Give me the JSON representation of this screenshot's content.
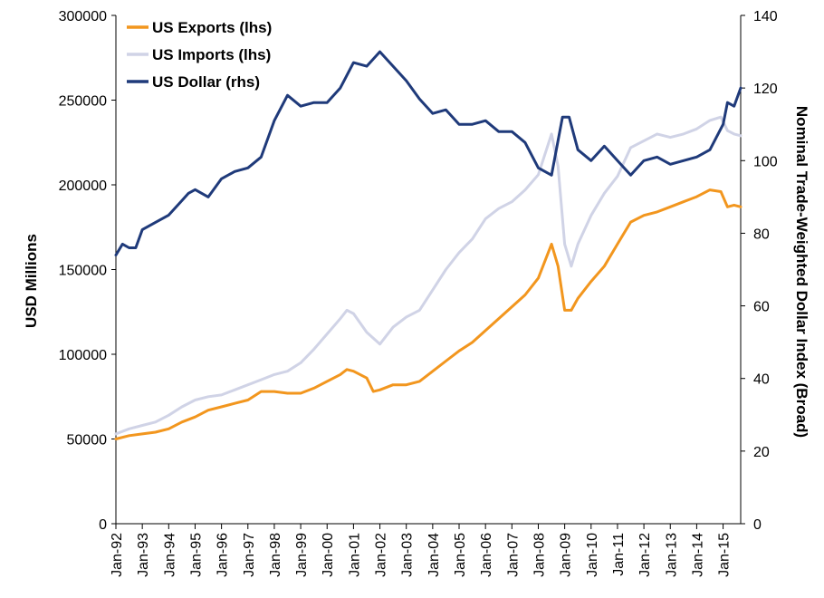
{
  "chart_data": {
    "type": "line",
    "title": "",
    "ylabel_left": "USD Millions",
    "ylabel_right": "Nominal Trade-Weighted Dollar Index (Broad)",
    "ylim_left": [
      0,
      300000
    ],
    "ylim_right": [
      0,
      140
    ],
    "yticks_left": [
      "0",
      "50000",
      "100000",
      "150000",
      "200000",
      "250000",
      "300000"
    ],
    "yticks_right": [
      "0",
      "20",
      "40",
      "60",
      "80",
      "100",
      "120",
      "140"
    ],
    "x_start": "Jan-92",
    "x_end": "Sep-15",
    "x_ticks": [
      "Jan-92",
      "Jan-93",
      "Jan-94",
      "Jan-95",
      "Jan-96",
      "Jan-97",
      "Jan-98",
      "Jan-99",
      "Jan-00",
      "Jan-01",
      "Jan-02",
      "Jan-03",
      "Jan-04",
      "Jan-05",
      "Jan-06",
      "Jan-07",
      "Jan-08",
      "Jan-09",
      "Jan-10",
      "Jan-11",
      "Jan-12",
      "Jan-13",
      "Jan-14",
      "Jan-15"
    ],
    "legend_position": "top-left",
    "grid": false,
    "series": [
      {
        "name": "US Exports (lhs)",
        "axis": "left",
        "color": "#F2961E",
        "points": [
          [
            "Jan-92",
            50000
          ],
          [
            "Jul-92",
            52000
          ],
          [
            "Jan-93",
            53000
          ],
          [
            "Jul-93",
            54000
          ],
          [
            "Jan-94",
            56000
          ],
          [
            "Jul-94",
            60000
          ],
          [
            "Jan-95",
            63000
          ],
          [
            "Jul-95",
            67000
          ],
          [
            "Jan-96",
            69000
          ],
          [
            "Jul-96",
            71000
          ],
          [
            "Jan-97",
            73000
          ],
          [
            "Jul-97",
            78000
          ],
          [
            "Jan-98",
            78000
          ],
          [
            "Jul-98",
            77000
          ],
          [
            "Jan-99",
            77000
          ],
          [
            "Jul-99",
            80000
          ],
          [
            "Jan-00",
            84000
          ],
          [
            "Jul-00",
            88000
          ],
          [
            "Oct-00",
            91000
          ],
          [
            "Jan-01",
            90000
          ],
          [
            "Jul-01",
            86000
          ],
          [
            "Oct-01",
            78000
          ],
          [
            "Jan-02",
            79000
          ],
          [
            "Jul-02",
            82000
          ],
          [
            "Jan-03",
            82000
          ],
          [
            "Jul-03",
            84000
          ],
          [
            "Jan-04",
            90000
          ],
          [
            "Jul-04",
            96000
          ],
          [
            "Jan-05",
            102000
          ],
          [
            "Jul-05",
            107000
          ],
          [
            "Jan-06",
            114000
          ],
          [
            "Jul-06",
            121000
          ],
          [
            "Jan-07",
            128000
          ],
          [
            "Jul-07",
            135000
          ],
          [
            "Jan-08",
            145000
          ],
          [
            "Jul-08",
            165000
          ],
          [
            "Oct-08",
            152000
          ],
          [
            "Jan-09",
            126000
          ],
          [
            "Apr-09",
            126000
          ],
          [
            "Jul-09",
            133000
          ],
          [
            "Jan-10",
            143000
          ],
          [
            "Jul-10",
            152000
          ],
          [
            "Jan-11",
            165000
          ],
          [
            "Jul-11",
            178000
          ],
          [
            "Jan-12",
            182000
          ],
          [
            "Jul-12",
            184000
          ],
          [
            "Jan-13",
            187000
          ],
          [
            "Jul-13",
            190000
          ],
          [
            "Jan-14",
            193000
          ],
          [
            "Jul-14",
            197000
          ],
          [
            "Dec-14",
            196000
          ],
          [
            "Mar-15",
            187000
          ],
          [
            "Jun-15",
            188000
          ],
          [
            "Sep-15",
            187000
          ]
        ]
      },
      {
        "name": "US Imports (lhs)",
        "axis": "left",
        "color": "#D0D3E6",
        "points": [
          [
            "Jan-92",
            53000
          ],
          [
            "Jul-92",
            56000
          ],
          [
            "Jan-93",
            58000
          ],
          [
            "Jul-93",
            60000
          ],
          [
            "Jan-94",
            64000
          ],
          [
            "Jul-94",
            69000
          ],
          [
            "Jan-95",
            73000
          ],
          [
            "Jul-95",
            75000
          ],
          [
            "Jan-96",
            76000
          ],
          [
            "Jul-96",
            79000
          ],
          [
            "Jan-97",
            82000
          ],
          [
            "Jul-97",
            85000
          ],
          [
            "Jan-98",
            88000
          ],
          [
            "Jul-98",
            90000
          ],
          [
            "Jan-99",
            95000
          ],
          [
            "Jul-99",
            103000
          ],
          [
            "Jan-00",
            112000
          ],
          [
            "Jul-00",
            121000
          ],
          [
            "Oct-00",
            126000
          ],
          [
            "Jan-01",
            124000
          ],
          [
            "Jul-01",
            113000
          ],
          [
            "Jan-02",
            106000
          ],
          [
            "Jul-02",
            116000
          ],
          [
            "Jan-03",
            122000
          ],
          [
            "Jul-03",
            126000
          ],
          [
            "Jan-04",
            138000
          ],
          [
            "Jul-04",
            150000
          ],
          [
            "Jan-05",
            160000
          ],
          [
            "Jul-05",
            168000
          ],
          [
            "Jan-06",
            180000
          ],
          [
            "Jul-06",
            186000
          ],
          [
            "Jan-07",
            190000
          ],
          [
            "Jul-07",
            197000
          ],
          [
            "Jan-08",
            206000
          ],
          [
            "Jul-08",
            230000
          ],
          [
            "Oct-08",
            211000
          ],
          [
            "Jan-09",
            165000
          ],
          [
            "Apr-09",
            152000
          ],
          [
            "Jul-09",
            165000
          ],
          [
            "Jan-10",
            182000
          ],
          [
            "Jul-10",
            195000
          ],
          [
            "Jan-11",
            205000
          ],
          [
            "Jul-11",
            222000
          ],
          [
            "Jan-12",
            226000
          ],
          [
            "Jul-12",
            230000
          ],
          [
            "Jan-13",
            228000
          ],
          [
            "Jul-13",
            230000
          ],
          [
            "Jan-14",
            233000
          ],
          [
            "Jul-14",
            238000
          ],
          [
            "Dec-14",
            240000
          ],
          [
            "Mar-15",
            232000
          ],
          [
            "Jun-15",
            230000
          ],
          [
            "Sep-15",
            229000
          ]
        ]
      },
      {
        "name": "US Dollar (rhs)",
        "axis": "right",
        "color": "#1F3A7A",
        "points": [
          [
            "Jan-92",
            74
          ],
          [
            "Apr-92",
            77
          ],
          [
            "Jul-92",
            76
          ],
          [
            "Oct-92",
            76
          ],
          [
            "Jan-93",
            81
          ],
          [
            "Jul-93",
            83
          ],
          [
            "Jan-94",
            85
          ],
          [
            "Jul-94",
            89
          ],
          [
            "Oct-94",
            91
          ],
          [
            "Jan-95",
            92
          ],
          [
            "Jul-95",
            90
          ],
          [
            "Jan-96",
            95
          ],
          [
            "Jul-96",
            97
          ],
          [
            "Jan-97",
            98
          ],
          [
            "Jul-97",
            101
          ],
          [
            "Jan-98",
            111
          ],
          [
            "Jul-98",
            118
          ],
          [
            "Jan-99",
            115
          ],
          [
            "Jul-99",
            116
          ],
          [
            "Jan-00",
            116
          ],
          [
            "Jul-00",
            120
          ],
          [
            "Jan-01",
            127
          ],
          [
            "Jul-01",
            126
          ],
          [
            "Jan-02",
            130
          ],
          [
            "Jul-02",
            126
          ],
          [
            "Jan-03",
            122
          ],
          [
            "Jul-03",
            117
          ],
          [
            "Jan-04",
            113
          ],
          [
            "Jul-04",
            114
          ],
          [
            "Jan-05",
            110
          ],
          [
            "Jul-05",
            110
          ],
          [
            "Jan-06",
            111
          ],
          [
            "Jul-06",
            108
          ],
          [
            "Jan-07",
            108
          ],
          [
            "Jul-07",
            105
          ],
          [
            "Jan-08",
            98
          ],
          [
            "Jul-08",
            96
          ],
          [
            "Dec-08",
            112
          ],
          [
            "Mar-09",
            112
          ],
          [
            "Jul-09",
            103
          ],
          [
            "Jan-10",
            100
          ],
          [
            "Jul-10",
            104
          ],
          [
            "Jan-11",
            100
          ],
          [
            "Jul-11",
            96
          ],
          [
            "Jan-12",
            100
          ],
          [
            "Jul-12",
            101
          ],
          [
            "Jan-13",
            99
          ],
          [
            "Jul-13",
            100
          ],
          [
            "Jan-14",
            101
          ],
          [
            "Jul-14",
            103
          ],
          [
            "Jan-15",
            110
          ],
          [
            "Mar-15",
            116
          ],
          [
            "Jun-15",
            115
          ],
          [
            "Sep-15",
            120
          ]
        ]
      }
    ]
  }
}
